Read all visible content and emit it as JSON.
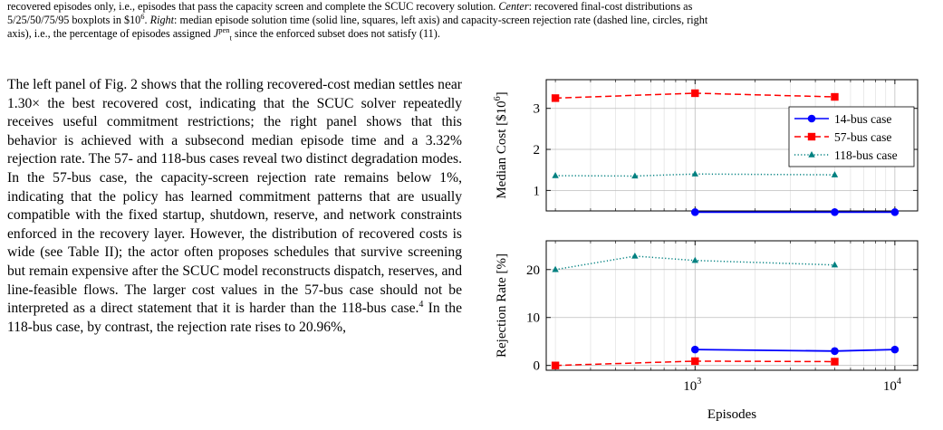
{
  "caption": {
    "line1_pre": "recovered episodes only, i.e., episodes that pass the capacity screen and complete the SCUC recovery solution. ",
    "center_label": "Center",
    "line1_post": ": recovered final-cost distributions as",
    "line2_pre": "5/25/50/75/95 boxplots in $10",
    "line2_exp": "6",
    "line2_mid": ". ",
    "right_label": "Right",
    "line2_post": ": median episode solution time (solid line, squares, left axis) and capacity-screen rejection rate (dashed line, circles, right",
    "line3_pre": "axis), i.e., the percentage of episodes assigned ",
    "line3_symbol": "J",
    "line3_sup": "pen",
    "line3_sub": "t",
    "line3_post": " since the enforced subset does not satisfy (11)."
  },
  "body": {
    "paragraph": "The left panel of Fig. 2 shows that the rolling recovered-cost median settles near 1.30× the best recovered cost, indicating that the SCUC solver repeatedly receives useful commitment restrictions; the right panel shows that this behavior is achieved with a subsecond median episode time and a 3.32% rejection rate. The 57- and 118-bus cases reveal two distinct degradation modes. In the 57-bus case, the capacity-screen rejection rate remains below 1%, indicating that the policy has learned commitment patterns that are usually compatible with the fixed startup, shutdown, reserve, and network constraints enforced in the recovery layer. However, the distribution of recovered costs is wide (see Table II); the actor often proposes schedules that survive screening but remain expensive after the SCUC model reconstructs dispatch, reserves, and line-feasible flows. The larger cost values in the 57-bus case should not be interpreted as a direct statement that it is harder than the 118-bus case.",
    "footnote_mark": "4",
    "paragraph_tail": " In the 118-bus case, by contrast, the rejection rate rises to 20.96%,"
  },
  "chart_data": [
    {
      "type": "line",
      "title": "",
      "ylabel_pre": "Median Cost [$10",
      "ylabel_exp": "6",
      "ylabel_post": "]",
      "xlabel": "",
      "xscale": "log",
      "xlim": [
        180,
        13000
      ],
      "ylim": [
        0.5,
        3.7
      ],
      "yticks": [
        1,
        2,
        3
      ],
      "ytick_labels": [
        "1",
        "2",
        "3"
      ],
      "grid": true,
      "legend_position": "top-right",
      "series": [
        {
          "name": "14-bus case",
          "style": "solid",
          "marker": "circle",
          "color": "#0000ff",
          "x": [
            1000,
            5000,
            10000
          ],
          "y": [
            0.47,
            0.47,
            0.47
          ]
        },
        {
          "name": "57-bus case",
          "style": "dashed",
          "marker": "square",
          "color": "#ff0000",
          "x": [
            200,
            1000,
            5000
          ],
          "y": [
            3.25,
            3.37,
            3.28
          ]
        },
        {
          "name": "118-bus case",
          "style": "dotted",
          "marker": "triangle",
          "color": "#008080",
          "x": [
            200,
            500,
            1000,
            5000
          ],
          "y": [
            1.36,
            1.35,
            1.4,
            1.38
          ]
        }
      ]
    },
    {
      "type": "line",
      "title": "",
      "ylabel": "Rejection Rate [%]",
      "xlabel": "Episodes",
      "xscale": "log",
      "xlim": [
        180,
        13000
      ],
      "ylim": [
        -1,
        26
      ],
      "yticks": [
        0,
        10,
        20
      ],
      "ytick_labels": [
        "0",
        "10",
        "20"
      ],
      "xticks": [
        1000,
        10000
      ],
      "xtick_base": "10",
      "xtick_exps": [
        "3",
        "4"
      ],
      "grid": true,
      "series": [
        {
          "name": "14-bus case",
          "style": "solid",
          "marker": "circle",
          "color": "#0000ff",
          "x": [
            1000,
            5000,
            10000
          ],
          "y": [
            3.32,
            3.0,
            3.32
          ]
        },
        {
          "name": "57-bus case",
          "style": "dashed",
          "marker": "square",
          "color": "#ff0000",
          "x": [
            200,
            1000,
            5000
          ],
          "y": [
            0.0,
            0.9,
            0.8
          ]
        },
        {
          "name": "118-bus case",
          "style": "dotted",
          "marker": "triangle",
          "color": "#008080",
          "x": [
            200,
            500,
            1000,
            5000
          ],
          "y": [
            20.0,
            22.8,
            21.9,
            20.96
          ]
        }
      ]
    }
  ]
}
